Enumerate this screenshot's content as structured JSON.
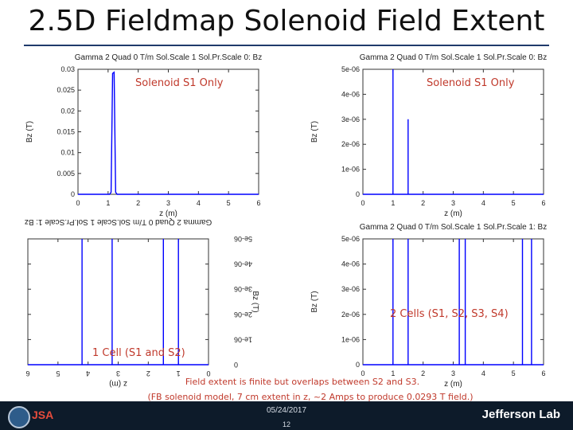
{
  "slide": {
    "title": "2.5D Fieldmap Solenoid Field Extent",
    "caption_line1": "Field extent is finite but overlaps between S2 and S3.",
    "caption_line2": "(FB solenoid model, 7 cm extent in z, ~2 Amps to produce 0.0293 T field.)",
    "footer": {
      "date": "05/24/2017",
      "page": "12",
      "lab": "Jefferson Lab",
      "logo_text": "JSA"
    },
    "colors": {
      "series": "#0000ff",
      "annotation": "#c0392b",
      "footer_bg": "#0d1b2a"
    }
  },
  "chart_data": [
    {
      "type": "line",
      "title": "Gamma 2 Quad 0 T/m Sol.Scale 1 Sol.Pr.Scale 0: Bz",
      "xlabel": "z (m)",
      "ylabel": "Bz (T)",
      "xlim": [
        0,
        6
      ],
      "ylim": [
        0,
        0.03
      ],
      "xticks": [
        "0",
        "1",
        "2",
        "3",
        "4",
        "5",
        "6"
      ],
      "yticks": [
        "0",
        "0.005",
        "0.01",
        "0.015",
        "0.02",
        "0.025",
        "0.03"
      ],
      "annotation": "Solenoid S1 Only",
      "series": [
        {
          "x": [
            0,
            1.05,
            1.1,
            1.15,
            1.2,
            1.25,
            1.3,
            6
          ],
          "y": [
            0,
            0,
            0.0005,
            0.029,
            0.0293,
            0.0005,
            0,
            0
          ]
        }
      ]
    },
    {
      "type": "line",
      "title": "Gamma 2 Quad 0 T/m Sol.Scale 1 Sol.Pr.Scale 0: Bz",
      "xlabel": "z (m)",
      "ylabel": "Bz (T)",
      "xlim": [
        0,
        6
      ],
      "ylim": [
        0,
        5e-06
      ],
      "xticks": [
        "0",
        "1",
        "2",
        "3",
        "4",
        "5",
        "6"
      ],
      "yticks": [
        "0",
        "1e-06",
        "2e-06",
        "3e-06",
        "4e-06",
        "5e-06"
      ],
      "annotation": "Solenoid S1 Only",
      "series": [
        {
          "x": [
            0,
            1.0,
            1.0,
            1.0,
            1.5,
            1.5,
            1.5,
            6
          ],
          "y": [
            0,
            0,
            5e-06,
            0,
            0,
            3e-06,
            0,
            0
          ]
        }
      ]
    },
    {
      "type": "line",
      "title": "Gamma 2 Quad 0 T/m Sol.Scale 1 Sol.Pr.Scale 1: Bz",
      "xlabel": "z (m)",
      "ylabel": "Bz (T)",
      "xlim": [
        0,
        6
      ],
      "ylim": [
        0,
        5e-06
      ],
      "xticks": [
        "0",
        "1",
        "2",
        "3",
        "4",
        "5",
        "6"
      ],
      "yticks": [
        "0",
        "1e-06",
        "2e-06",
        "3e-06",
        "4e-06",
        "5e-06"
      ],
      "annotation": "1 Cell (S1 and S2)",
      "mirrored": true,
      "series": [
        {
          "x": [
            0,
            1.0,
            1.0,
            1.0,
            1.5,
            1.5,
            1.5,
            3.2,
            3.2,
            3.2,
            4.2,
            4.2,
            4.2,
            6
          ],
          "y": [
            0,
            0,
            5e-06,
            0,
            0,
            5e-06,
            0,
            0,
            5e-06,
            0,
            0,
            5e-06,
            0,
            0
          ]
        }
      ]
    },
    {
      "type": "line",
      "title": "Gamma 2 Quad 0 T/m Sol.Scale 1 Sol.Pr.Scale 1: Bz",
      "xlabel": "z (m)",
      "ylabel": "Bz (T)",
      "xlim": [
        0,
        6
      ],
      "ylim": [
        0,
        5e-06
      ],
      "xticks": [
        "0",
        "1",
        "2",
        "3",
        "4",
        "5",
        "6"
      ],
      "yticks": [
        "0",
        "1e-06",
        "2e-06",
        "3e-06",
        "4e-06",
        "5e-06"
      ],
      "annotation": "2 Cells (S1, S2, S3, S4)",
      "series": [
        {
          "x": [
            0,
            1.0,
            1.0,
            1.0,
            1.5,
            1.5,
            1.5,
            3.2,
            3.2,
            3.2,
            3.4,
            3.4,
            3.4,
            5.3,
            5.3,
            5.3,
            5.6,
            5.6,
            5.6,
            6
          ],
          "y": [
            0,
            0,
            5e-06,
            0,
            0,
            5e-06,
            0,
            0,
            5e-06,
            0,
            0,
            5e-06,
            0,
            0,
            5e-06,
            0,
            0,
            5e-06,
            0,
            0
          ]
        }
      ]
    }
  ]
}
